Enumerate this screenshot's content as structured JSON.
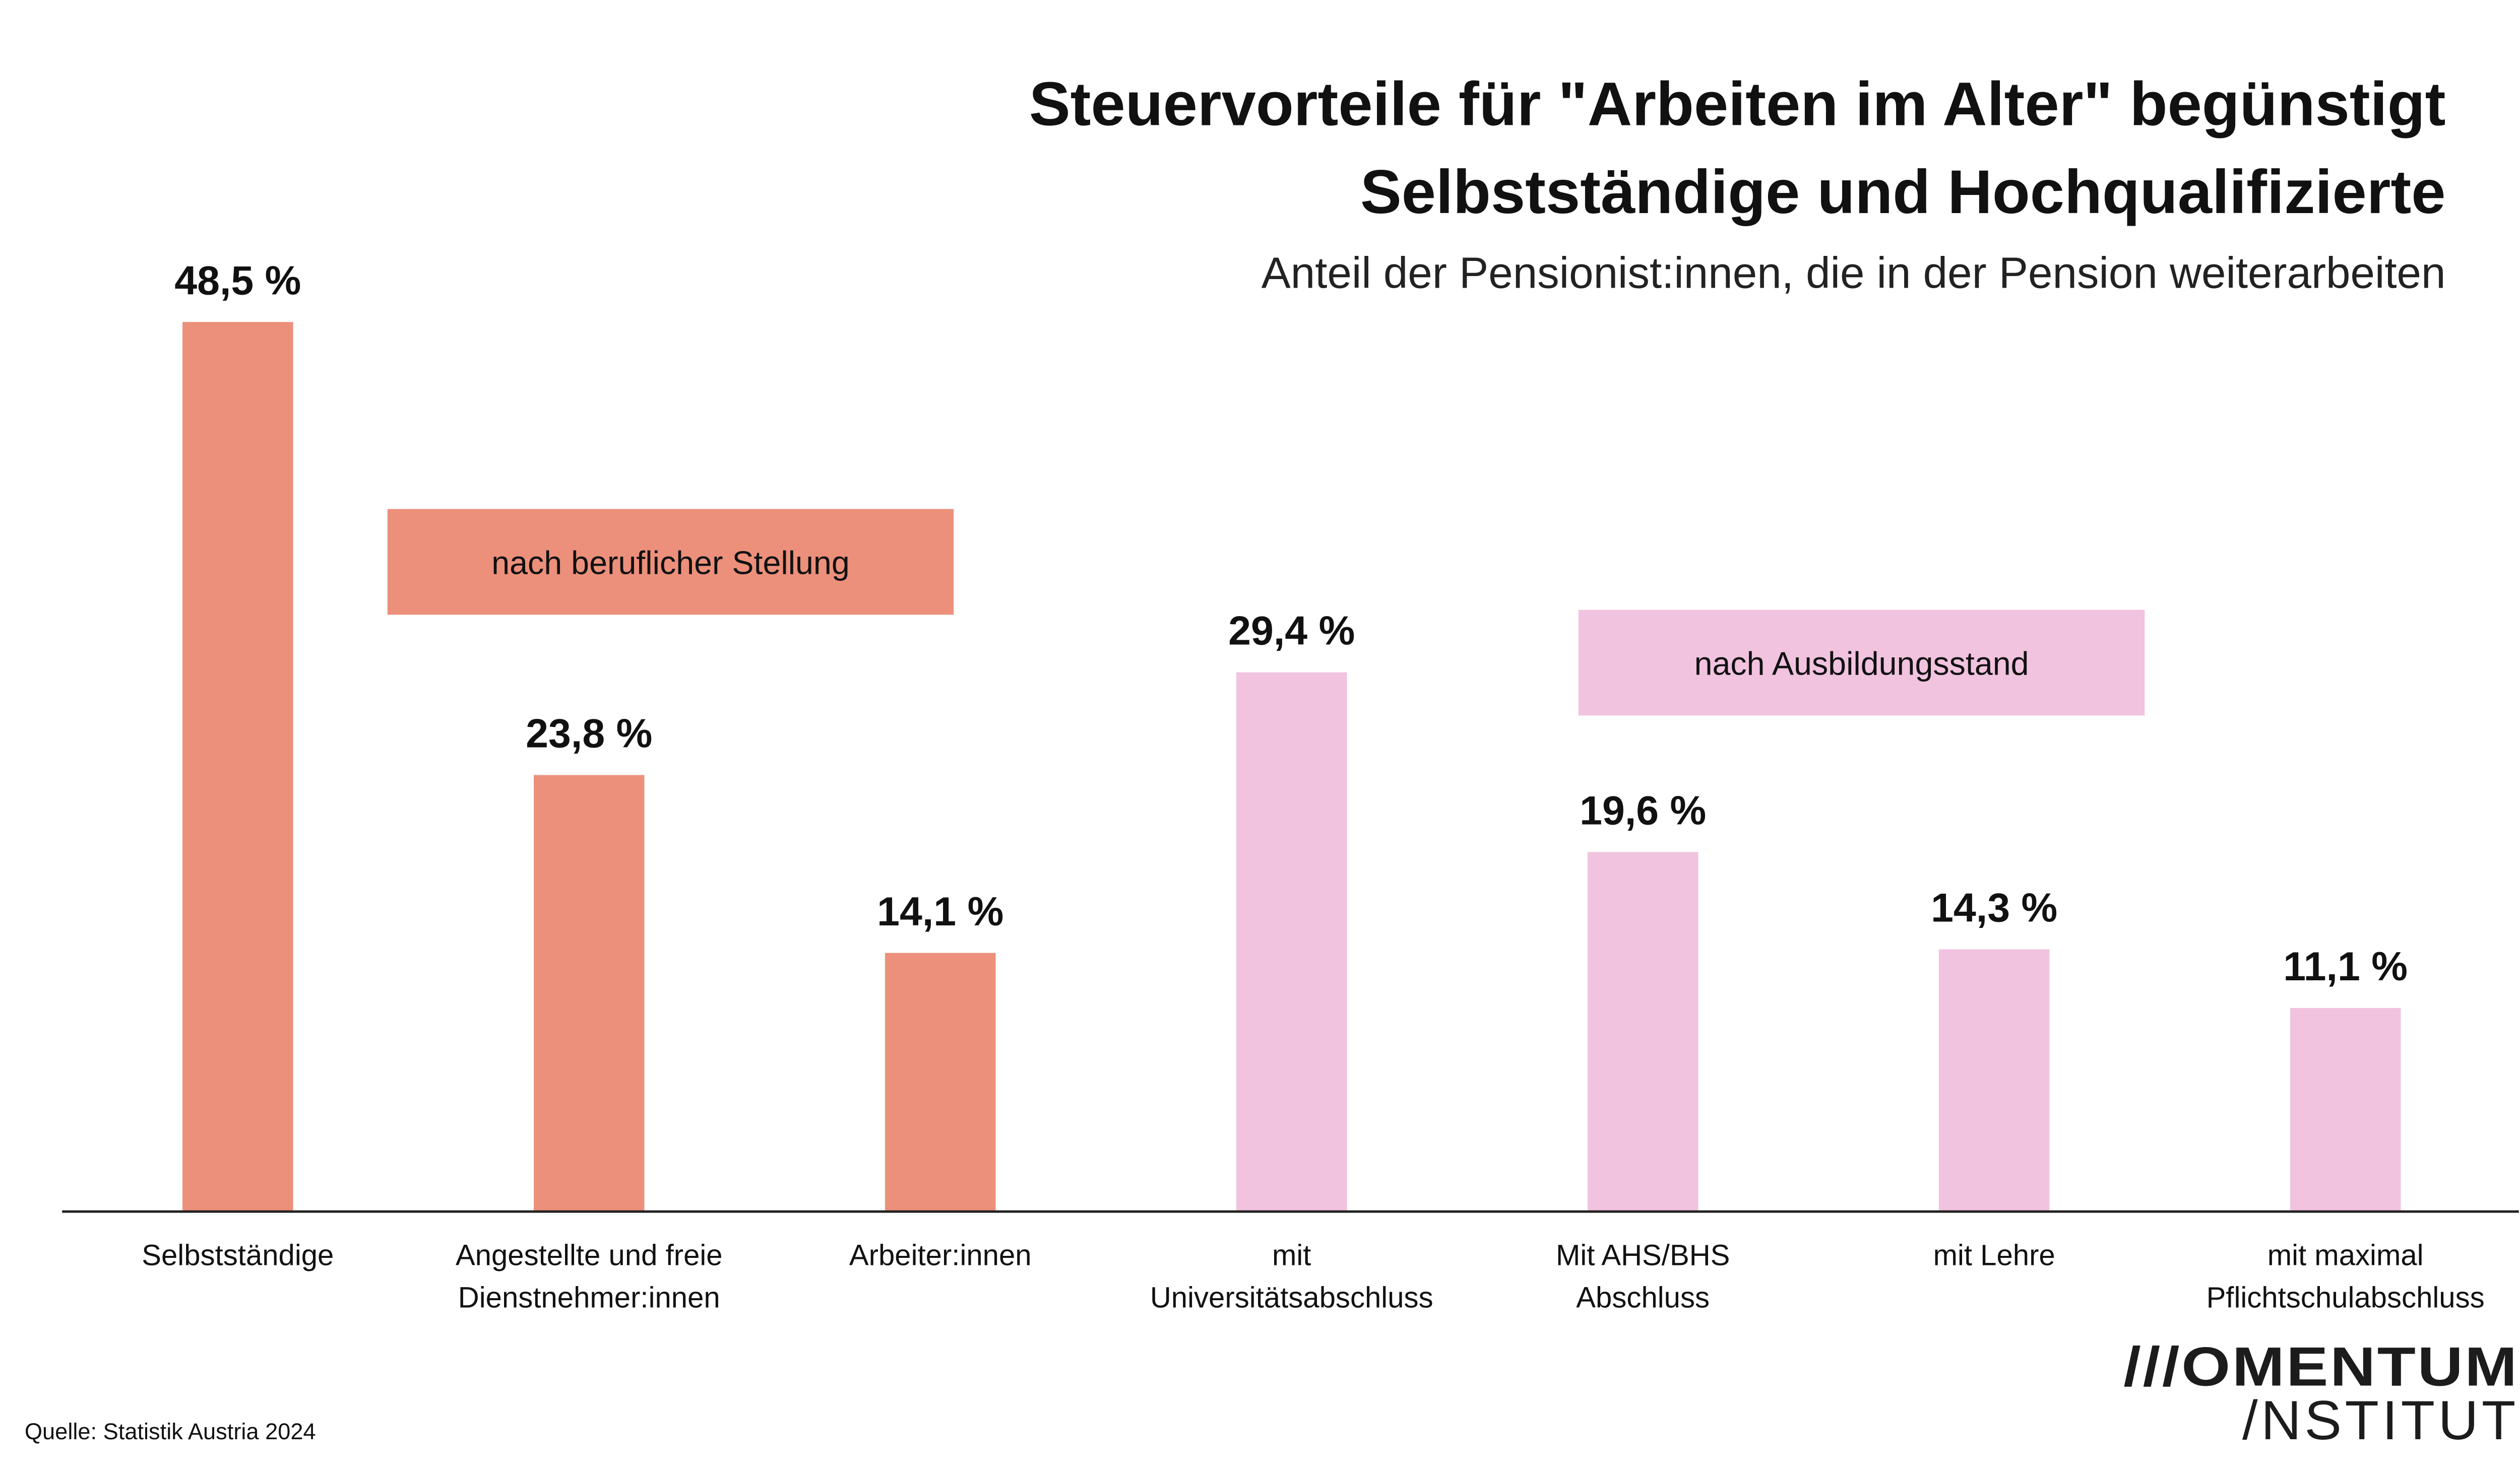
{
  "chart_data": {
    "type": "bar",
    "title": [
      "Steuervorteile für \"Arbeiten im Alter\" begünstigt",
      "Selbstständige und Hochqualifizierte"
    ],
    "subtitle": "Anteil der Pensionist:innen, die in der Pension weiterarbeiten",
    "categories": [
      [
        "Selbstständige"
      ],
      [
        "Angestellte und freie",
        "Dienstnehmer:innen"
      ],
      [
        "Arbeiter:innen"
      ],
      [
        "mit",
        "Universitätsabschluss"
      ],
      [
        "Mit AHS/BHS",
        "Abschluss"
      ],
      [
        "mit Lehre"
      ],
      [
        "mit maximal",
        "Pflichtschulabschluss"
      ]
    ],
    "values": [
      48.5,
      23.8,
      14.1,
      29.4,
      19.6,
      14.3,
      11.1
    ],
    "value_labels": [
      "48,5 %",
      "23,8 %",
      "14,1 %",
      "29,4 %",
      "19,6 %",
      "14,3 %",
      "11,1 %"
    ],
    "groups": [
      {
        "label": "nach beruflicher Stellung",
        "color": "#EC907B",
        "indices": [
          0,
          1,
          2
        ]
      },
      {
        "label": "nach Ausbildungsstand",
        "color": "#F1C3DE",
        "indices": [
          3,
          4,
          5,
          6
        ]
      }
    ],
    "ylim": [
      0,
      50
    ],
    "grid": false,
    "xlabel": "",
    "ylabel": ""
  },
  "source": "Quelle: Statistik Austria 2024",
  "logo": {
    "line1": "///OMENTUM",
    "line2": "/NSTITUT"
  }
}
